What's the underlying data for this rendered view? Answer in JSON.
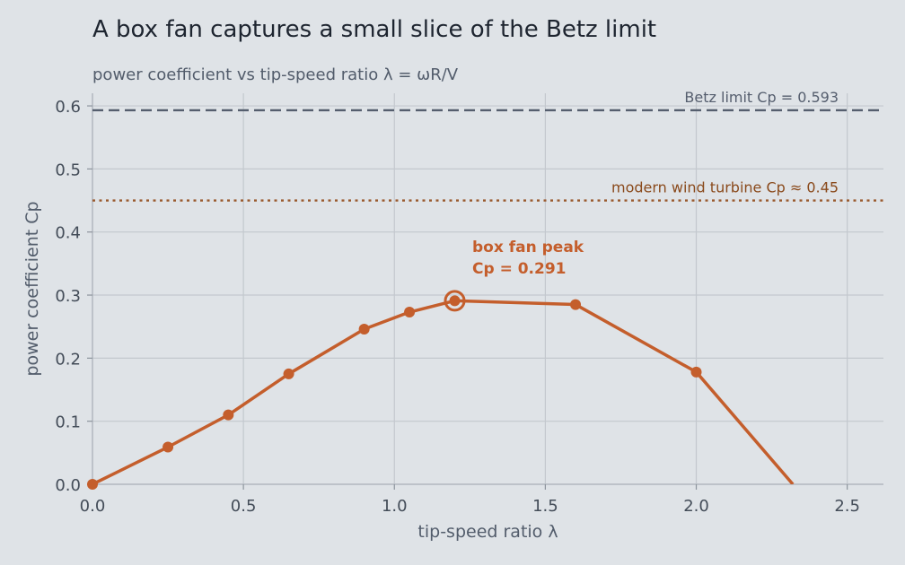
{
  "title": "A box fan captures a small slice of the Betz limit",
  "subtitle": "power coefficient vs tip-speed ratio λ = ωR/V",
  "chart_data": {
    "type": "line",
    "xlabel": "tip-speed ratio  λ",
    "ylabel": "power coefficient  Cp",
    "xlim": [
      0,
      2.62
    ],
    "ylim": [
      0,
      0.62
    ],
    "xticks": [
      0.0,
      0.5,
      1.0,
      1.5,
      2.0,
      2.5
    ],
    "xtick_labels": [
      "0.0",
      "0.5",
      "1.0",
      "1.5",
      "2.0",
      "2.5"
    ],
    "yticks": [
      0.0,
      0.1,
      0.2,
      0.3,
      0.4,
      0.5,
      0.6
    ],
    "ytick_labels": [
      "0.0",
      "0.1",
      "0.2",
      "0.3",
      "0.4",
      "0.5",
      "0.6"
    ],
    "grid": true,
    "series": [
      {
        "x": [
          0.0,
          0.25,
          0.45,
          0.65,
          0.9,
          1.05,
          1.2,
          1.6,
          2.0,
          2.32
        ],
        "y": [
          0.0,
          0.059,
          0.11,
          0.175,
          0.246,
          0.273,
          0.291,
          0.285,
          0.178,
          0.0
        ],
        "markers": [
          true,
          true,
          true,
          true,
          true,
          true,
          true,
          true,
          true,
          false
        ],
        "color": "#c45e2c"
      }
    ],
    "reference_lines": [
      {
        "y": 0.593,
        "label": "Betz limit  Cp = 0.593",
        "style": "dashed",
        "color": "#555e6e",
        "label_color": "#555e6e"
      },
      {
        "y": 0.45,
        "label": "modern wind turbine  Cp ≈ 0.45",
        "style": "dotted",
        "color": "#9a5a2e",
        "label_color": "#8a4a1c"
      }
    ],
    "annotations": [
      {
        "x": 1.2,
        "y": 0.291,
        "lines": [
          "box fan peak",
          "Cp = 0.291"
        ],
        "color": "#c45e2c"
      }
    ]
  }
}
